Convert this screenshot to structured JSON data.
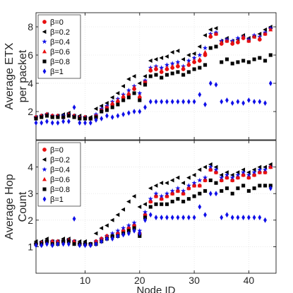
{
  "chart_data": [
    {
      "type": "scatter",
      "ylabel_lines": [
        "Average ETX",
        "per packet"
      ],
      "xlim": [
        1,
        45
      ],
      "ylim": [
        0,
        9
      ],
      "yticks": [
        2,
        4,
        6,
        8
      ],
      "xticks": [
        10,
        20,
        30,
        40
      ],
      "show_xtick_labels": false,
      "grid": true,
      "legend": {
        "placement": "top-left",
        "entries": [
          "β=0",
          "β=0.2",
          "β=0.4",
          "β=0.6",
          "β=0.8",
          "β=1"
        ]
      },
      "series": [
        {
          "name": "β=0",
          "marker": "circle",
          "color": "#e81010",
          "values": [
            1.6,
            1.7,
            1.8,
            1.7,
            1.7,
            1.6,
            1.8,
            1.7,
            1.6,
            1.6,
            1.5,
            1.7,
            2.1,
            2.3,
            2.5,
            2.7,
            3.0,
            3.2,
            3.6,
            3.0,
            4.1,
            4.9,
            5.0,
            4.8,
            5.0,
            5.1,
            5.2,
            5.0,
            5.3,
            5.5,
            5.6,
            6.0,
            7.3,
            7.5,
            6.8,
            7.0,
            6.8,
            6.9,
            7.2,
            7.0,
            7.3,
            7.1,
            7.5,
            7.9
          ]
        },
        {
          "name": "β=0.2",
          "marker": "triangle-left",
          "color": "#000000",
          "values": [
            1.6,
            1.7,
            1.8,
            1.6,
            1.7,
            1.8,
            1.9,
            1.7,
            1.7,
            1.6,
            1.6,
            2.2,
            2.4,
            2.6,
            3.0,
            3.3,
            3.8,
            4.3,
            4.5,
            4.0,
            4.5,
            5.6,
            5.7,
            5.8,
            5.9,
            6.2,
            6.3,
            5.7,
            6.0,
            6.1,
            6.6,
            7.4,
            7.8,
            7.9,
            7.0,
            7.2,
            7.0,
            7.1,
            7.4,
            7.2,
            7.3,
            7.5,
            7.8,
            8.0
          ]
        },
        {
          "name": "β=0.4",
          "marker": "star",
          "color": "#1010e8",
          "values": [
            1.6,
            1.7,
            1.8,
            1.7,
            1.7,
            1.7,
            1.8,
            1.7,
            1.6,
            1.6,
            1.5,
            1.8,
            2.2,
            2.4,
            2.7,
            2.9,
            3.2,
            3.5,
            3.8,
            3.3,
            4.2,
            5.1,
            5.2,
            5.1,
            5.3,
            5.4,
            5.5,
            5.2,
            5.6,
            5.8,
            6.0,
            6.5,
            7.5,
            7.6,
            7.0,
            7.1,
            7.0,
            7.2,
            7.3,
            7.1,
            7.4,
            7.3,
            7.6,
            7.9
          ]
        },
        {
          "name": "β=0.6",
          "marker": "triangle-up",
          "color": "#e81010",
          "values": [
            1.6,
            1.7,
            1.8,
            1.7,
            1.7,
            1.6,
            1.8,
            1.7,
            1.6,
            1.6,
            1.5,
            1.7,
            2.1,
            2.3,
            2.6,
            2.8,
            3.1,
            3.3,
            3.7,
            3.1,
            4.1,
            5.0,
            5.1,
            4.9,
            5.1,
            5.2,
            5.3,
            5.1,
            5.4,
            5.6,
            5.7,
            6.2,
            7.4,
            7.5,
            6.9,
            7.0,
            6.9,
            7.0,
            7.3,
            7.0,
            7.3,
            7.2,
            7.5,
            7.8
          ]
        },
        {
          "name": "β=0.8",
          "marker": "square",
          "color": "#000000",
          "values": [
            1.5,
            1.6,
            1.7,
            1.6,
            1.6,
            1.6,
            1.7,
            1.6,
            1.5,
            1.5,
            1.5,
            1.6,
            2.0,
            2.1,
            2.3,
            2.5,
            2.8,
            3.0,
            3.3,
            2.8,
            3.9,
            4.5,
            4.6,
            4.4,
            4.6,
            4.7,
            4.8,
            4.6,
            4.8,
            5.0,
            5.1,
            5.3,
            6.5,
            6.6,
            5.5,
            5.7,
            5.4,
            5.5,
            5.6,
            5.5,
            5.7,
            5.8,
            5.6,
            6.0
          ]
        },
        {
          "name": "β=1",
          "marker": "diamond",
          "color": "#1010e8",
          "values": [
            1.2,
            1.2,
            1.3,
            1.2,
            1.2,
            1.3,
            1.3,
            2.3,
            1.2,
            1.2,
            1.2,
            1.4,
            1.5,
            1.7,
            1.6,
            1.7,
            1.8,
            1.9,
            2.0,
            2.0,
            2.3,
            2.7,
            2.7,
            2.7,
            2.7,
            2.7,
            2.7,
            2.7,
            2.7,
            2.7,
            3.2,
            2.5,
            4.0,
            3.9,
            2.7,
            2.8,
            2.6,
            2.7,
            2.6,
            2.8,
            2.7,
            2.7,
            2.6,
            4.0
          ]
        }
      ]
    },
    {
      "type": "scatter",
      "ylabel_lines": [
        "Average Hop",
        "Count"
      ],
      "xlabel": "Node ID",
      "xlim": [
        1,
        45
      ],
      "ylim": [
        0,
        5
      ],
      "yticks": [
        1,
        2,
        3,
        4
      ],
      "xticks": [
        10,
        20,
        30,
        40
      ],
      "show_xtick_labels": true,
      "grid": true,
      "legend": {
        "placement": "top-left",
        "entries": [
          "β=0",
          "β=0.2",
          "β=0.4",
          "β=0.6",
          "β=0.8",
          "β=1"
        ]
      },
      "series": [
        {
          "name": "β=0",
          "marker": "circle",
          "color": "#e81010",
          "values": [
            1.1,
            1.15,
            1.2,
            1.2,
            1.2,
            1.2,
            1.25,
            1.2,
            1.1,
            1.1,
            1.1,
            1.2,
            1.3,
            1.4,
            1.4,
            1.5,
            1.6,
            1.7,
            1.8,
            1.5,
            2.2,
            2.7,
            2.9,
            2.8,
            2.9,
            3.0,
            3.1,
            3.0,
            3.2,
            3.3,
            3.3,
            3.5,
            3.9,
            3.8,
            3.5,
            3.6,
            3.5,
            3.6,
            3.7,
            3.6,
            3.7,
            3.8,
            3.8,
            4.0
          ]
        },
        {
          "name": "β=0.2",
          "marker": "triangle-left",
          "color": "#000000",
          "values": [
            1.2,
            1.2,
            1.3,
            1.2,
            1.2,
            1.3,
            1.3,
            1.2,
            1.2,
            1.2,
            1.1,
            1.5,
            1.7,
            1.8,
            2.0,
            2.2,
            2.4,
            2.7,
            2.9,
            2.5,
            2.6,
            3.2,
            3.3,
            3.4,
            3.4,
            3.5,
            3.6,
            3.4,
            3.6,
            3.7,
            3.9,
            4.0,
            4.1,
            4.0,
            3.7,
            3.8,
            3.7,
            3.8,
            3.9,
            3.8,
            3.9,
            4.0,
            4.0,
            4.1
          ]
        },
        {
          "name": "β=0.4",
          "marker": "star",
          "color": "#1010e8",
          "values": [
            1.1,
            1.15,
            1.2,
            1.2,
            1.2,
            1.2,
            1.25,
            1.2,
            1.1,
            1.1,
            1.1,
            1.2,
            1.3,
            1.4,
            1.5,
            1.6,
            1.7,
            1.8,
            1.9,
            1.6,
            2.3,
            2.8,
            3.0,
            2.9,
            3.0,
            3.1,
            3.2,
            3.1,
            3.3,
            3.4,
            3.5,
            3.6,
            4.0,
            3.9,
            3.6,
            3.7,
            3.6,
            3.7,
            3.8,
            3.7,
            3.8,
            3.9,
            3.9,
            4.0
          ]
        },
        {
          "name": "β=0.6",
          "marker": "triangle-up",
          "color": "#e81010",
          "values": [
            1.1,
            1.15,
            1.2,
            1.2,
            1.2,
            1.2,
            1.25,
            1.2,
            1.1,
            1.1,
            1.1,
            1.2,
            1.3,
            1.4,
            1.4,
            1.5,
            1.6,
            1.7,
            1.8,
            1.5,
            2.2,
            2.7,
            2.9,
            2.8,
            2.9,
            3.0,
            3.1,
            3.0,
            3.2,
            3.3,
            3.3,
            3.5,
            3.9,
            3.8,
            3.5,
            3.6,
            3.5,
            3.6,
            3.7,
            3.6,
            3.7,
            3.8,
            3.8,
            4.0
          ]
        },
        {
          "name": "β=0.8",
          "marker": "square",
          "color": "#000000",
          "values": [
            1.1,
            1.1,
            1.2,
            1.1,
            1.1,
            1.2,
            1.2,
            1.1,
            1.1,
            1.1,
            1.1,
            1.1,
            1.2,
            1.3,
            1.4,
            1.4,
            1.5,
            1.6,
            1.7,
            1.4,
            2.1,
            2.5,
            2.6,
            2.6,
            2.6,
            2.7,
            2.8,
            2.7,
            2.8,
            2.9,
            3.0,
            3.1,
            3.5,
            3.4,
            3.1,
            3.2,
            3.0,
            3.2,
            3.3,
            3.1,
            3.2,
            3.3,
            3.3,
            3.3
          ]
        },
        {
          "name": "β=1",
          "marker": "diamond",
          "color": "#1010e8",
          "values": [
            1.05,
            1.05,
            1.1,
            1.05,
            1.1,
            1.1,
            1.1,
            2.05,
            1.05,
            1.05,
            1.05,
            1.1,
            1.2,
            1.3,
            1.3,
            1.4,
            1.45,
            1.5,
            1.6,
            1.5,
            2.0,
            2.2,
            2.1,
            2.1,
            2.1,
            2.1,
            2.1,
            2.1,
            2.1,
            2.1,
            2.5,
            2.2,
            3.0,
            3.0,
            2.1,
            2.2,
            2.1,
            2.1,
            2.1,
            2.1,
            2.1,
            2.1,
            2.0,
            3.2
          ]
        }
      ]
    }
  ]
}
